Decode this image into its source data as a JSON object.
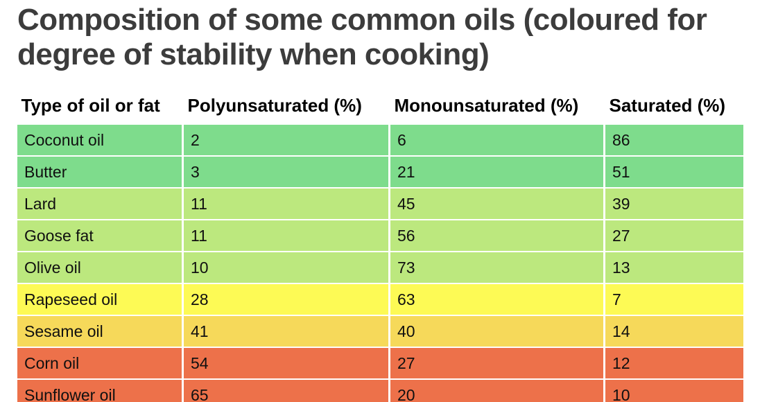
{
  "page": {
    "title": "Composition of some common oils (coloured for degree of stability when cooking)"
  },
  "table": {
    "header": {
      "type": "Type of oil or fat",
      "poly": "Polyunsaturated (%)",
      "mono": "Monounsaturated (%)",
      "sat": "Saturated (%)"
    },
    "rows": [
      {
        "name": "Coconut oil",
        "poly": "2",
        "mono": "6",
        "sat": "86",
        "color": "#7edc8c"
      },
      {
        "name": "Butter",
        "poly": "3",
        "mono": "21",
        "sat": "51",
        "color": "#7edc8c"
      },
      {
        "name": "Lard",
        "poly": "11",
        "mono": "45",
        "sat": "39",
        "color": "#bce87e"
      },
      {
        "name": "Goose fat",
        "poly": "11",
        "mono": "56",
        "sat": "27",
        "color": "#bce87e"
      },
      {
        "name": "Olive oil",
        "poly": "10",
        "mono": "73",
        "sat": "13",
        "color": "#bce87e"
      },
      {
        "name": "Rapeseed oil",
        "poly": "28",
        "mono": "63",
        "sat": "7",
        "color": "#fdfa55"
      },
      {
        "name": "Sesame oil",
        "poly": "41",
        "mono": "40",
        "sat": "14",
        "color": "#f6d95a"
      },
      {
        "name": "Corn oil",
        "poly": "54",
        "mono": "27",
        "sat": "12",
        "color": "#ed714a"
      },
      {
        "name": "Sunflower oil",
        "poly": "65",
        "mono": "20",
        "sat": "10",
        "color": "#ed714a"
      }
    ]
  },
  "colors": {
    "title_text": "#3c3c3c",
    "cell_text": "#101010",
    "grid_lines": "#ffffff",
    "stability_green": "#7edc8c",
    "stability_light_green": "#bce87e",
    "stability_yellow": "#fdfa55",
    "stability_amber": "#f6d95a",
    "stability_orange": "#ed714a"
  },
  "chart_data": {
    "type": "table",
    "title": "Composition of some common oils (coloured for degree of stability when cooking)",
    "columns": [
      "Type of oil or fat",
      "Polyunsaturated (%)",
      "Monounsaturated (%)",
      "Saturated (%)"
    ],
    "rows": [
      {
        "oil": "Coconut oil",
        "polyunsaturated_pct": 2,
        "monounsaturated_pct": 6,
        "saturated_pct": 86,
        "row_color": "#7edc8c"
      },
      {
        "oil": "Butter",
        "polyunsaturated_pct": 3,
        "monounsaturated_pct": 21,
        "saturated_pct": 51,
        "row_color": "#7edc8c"
      },
      {
        "oil": "Lard",
        "polyunsaturated_pct": 11,
        "monounsaturated_pct": 45,
        "saturated_pct": 39,
        "row_color": "#bce87e"
      },
      {
        "oil": "Goose fat",
        "polyunsaturated_pct": 11,
        "monounsaturated_pct": 56,
        "saturated_pct": 27,
        "row_color": "#bce87e"
      },
      {
        "oil": "Olive oil",
        "polyunsaturated_pct": 10,
        "monounsaturated_pct": 73,
        "saturated_pct": 13,
        "row_color": "#bce87e"
      },
      {
        "oil": "Rapeseed oil",
        "polyunsaturated_pct": 28,
        "monounsaturated_pct": 63,
        "saturated_pct": 7,
        "row_color": "#fdfa55"
      },
      {
        "oil": "Sesame oil",
        "polyunsaturated_pct": 41,
        "monounsaturated_pct": 40,
        "saturated_pct": 14,
        "row_color": "#f6d95a"
      },
      {
        "oil": "Corn oil",
        "polyunsaturated_pct": 54,
        "monounsaturated_pct": 27,
        "saturated_pct": 12,
        "row_color": "#ed714a"
      },
      {
        "oil": "Sunflower oil",
        "polyunsaturated_pct": 65,
        "monounsaturated_pct": 20,
        "saturated_pct": 10,
        "row_color": "#ed714a"
      }
    ],
    "layout": {
      "grid": "white separators between cells",
      "row_color_meaning": "degree of stability when cooking (stated in title)",
      "header_style": "bold black text on white, no fill"
    }
  }
}
